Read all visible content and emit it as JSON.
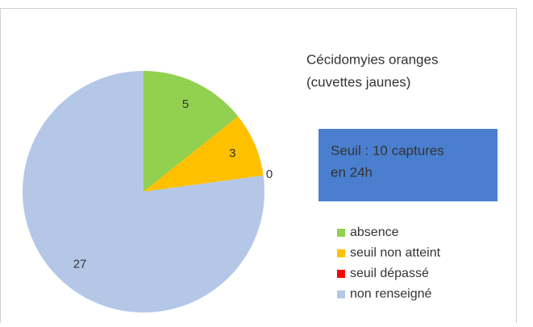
{
  "chart_data": {
    "type": "pie",
    "title": [
      "Cécidomyies oranges",
      "(cuvettes jaunes)"
    ],
    "annotation": [
      "Seuil : 10 captures",
      "en 24h"
    ],
    "categories": [
      "absence",
      "seuil non atteint",
      "seuil dépassé",
      "non renseigné"
    ],
    "values": [
      5,
      3,
      0,
      27
    ],
    "colors": [
      "#92d050",
      "#ffc000",
      "#ff0000",
      "#b4c7e7"
    ],
    "annotation_color": "#4a7fcf"
  }
}
